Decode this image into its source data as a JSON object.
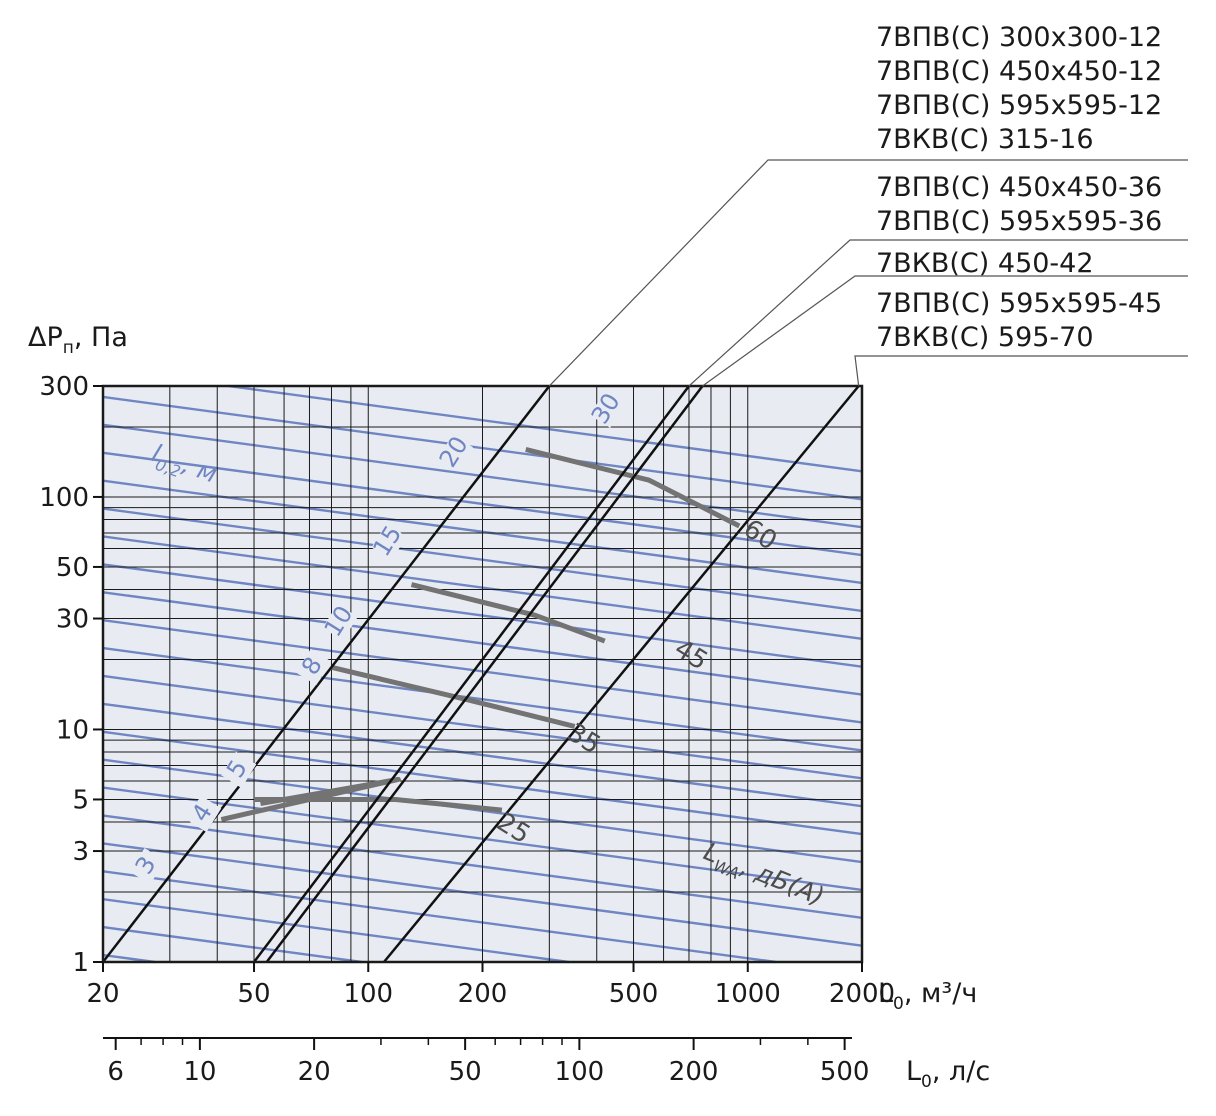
{
  "chart_data": {
    "type": "line",
    "x_scale": "log",
    "y_scale": "log",
    "xlim": [
      20,
      2000
    ],
    "ylim": [
      1,
      300
    ],
    "x_ticks": [
      20,
      50,
      100,
      200,
      500,
      1000,
      2000
    ],
    "y_ticks": [
      1,
      3,
      5,
      10,
      30,
      50,
      100,
      300
    ],
    "x_minor_ticks": [
      30,
      40,
      60,
      70,
      80,
      90,
      300,
      400,
      600,
      700,
      800,
      900
    ],
    "y_minor_ticks": [
      2,
      4,
      6,
      7,
      8,
      9,
      20,
      40,
      60,
      70,
      80,
      90,
      200
    ],
    "secondary_x_ticks": [
      6,
      10,
      20,
      50,
      100,
      200,
      500
    ],
    "secondary_x_minor_ticks": [
      7,
      8,
      9,
      30,
      40,
      60,
      70,
      80,
      90,
      300,
      400
    ],
    "ylabel_main": "ΔP",
    "ylabel_sub": "п",
    "ylabel_unit": ", Па",
    "xlabel_main": "L",
    "xlabel_sub": "0",
    "xlabel_unit": ", м³/ч",
    "secondary_xlabel_main": "L",
    "secondary_xlabel_sub": "0",
    "secondary_xlabel_unit": ", л/с",
    "throw_label_main": "l",
    "throw_label_sub": "0,2",
    "throw_label_unit": ", м",
    "sound_label_main": "L",
    "sound_label_sub": "WA",
    "sound_label_unit": ", дБ(А)",
    "colors": {
      "grid": "#1a1a1a",
      "throw_lines": "#6f86c2",
      "sound_lines": "#737373",
      "plot_background": "#e8ecf2"
    },
    "model_groups": [
      {
        "labels": [
          "7ВПВ(С) 300x300-12",
          "7ВПВ(С) 450x450-12",
          "7ВПВ(С) 595x595-12",
          "7ВКВ(С) 315-16"
        ],
        "line": {
          "x": [
            20,
            300
          ],
          "y": [
            1,
            300
          ]
        }
      },
      {
        "labels": [
          "7ВПВ(С) 450x450-36",
          "7ВПВ(С) 595x595-36"
        ],
        "line": {
          "x": [
            50,
            700
          ],
          "y": [
            1,
            300
          ]
        }
      },
      {
        "labels": [
          "7ВКВ(С) 450-42"
        ],
        "line": {
          "x": [
            54,
            760
          ],
          "y": [
            1,
            300
          ]
        }
      },
      {
        "labels": [
          "7ВПВ(С) 595x595-45",
          "7ВКВ(С) 595-70"
        ],
        "line": {
          "x": [
            110,
            1960
          ],
          "y": [
            1,
            300
          ]
        }
      }
    ],
    "throw_labels": [
      {
        "text": "3",
        "x": 27,
        "y": 2.5
      },
      {
        "text": "4",
        "x": 38,
        "y": 4.2
      },
      {
        "text": "5",
        "x": 47,
        "y": 6.5
      },
      {
        "text": "8",
        "x": 74,
        "y": 18
      },
      {
        "text": "10",
        "x": 87,
        "y": 28
      },
      {
        "text": "15",
        "x": 117,
        "y": 62
      },
      {
        "text": "20",
        "x": 175,
        "y": 150
      },
      {
        "text": "30",
        "x": 440,
        "y": 230
      }
    ],
    "sound_labels": [
      {
        "text": "25",
        "x": 235,
        "y": 3.5
      },
      {
        "text": "35",
        "x": 360,
        "y": 8.5
      },
      {
        "text": "45",
        "x": 690,
        "y": 19.5
      },
      {
        "text": "60",
        "x": 1050,
        "y": 64
      }
    ],
    "grey_paths": [
      {
        "x": [
          41,
          120,
          52
        ],
        "y": [
          4.1,
          6.1,
          4.8
        ]
      },
      {
        "x": [
          50,
          118,
          225
        ],
        "y": [
          5,
          5,
          4.5
        ]
      },
      {
        "x": [
          80,
          180,
          350
        ],
        "y": [
          18.5,
          13.5,
          10.3
        ]
      },
      {
        "x": [
          130,
          275,
          420
        ],
        "y": [
          42,
          31,
          24
        ]
      },
      {
        "x": [
          260,
          550,
          950
        ],
        "y": [
          160,
          118,
          75
        ]
      }
    ]
  }
}
